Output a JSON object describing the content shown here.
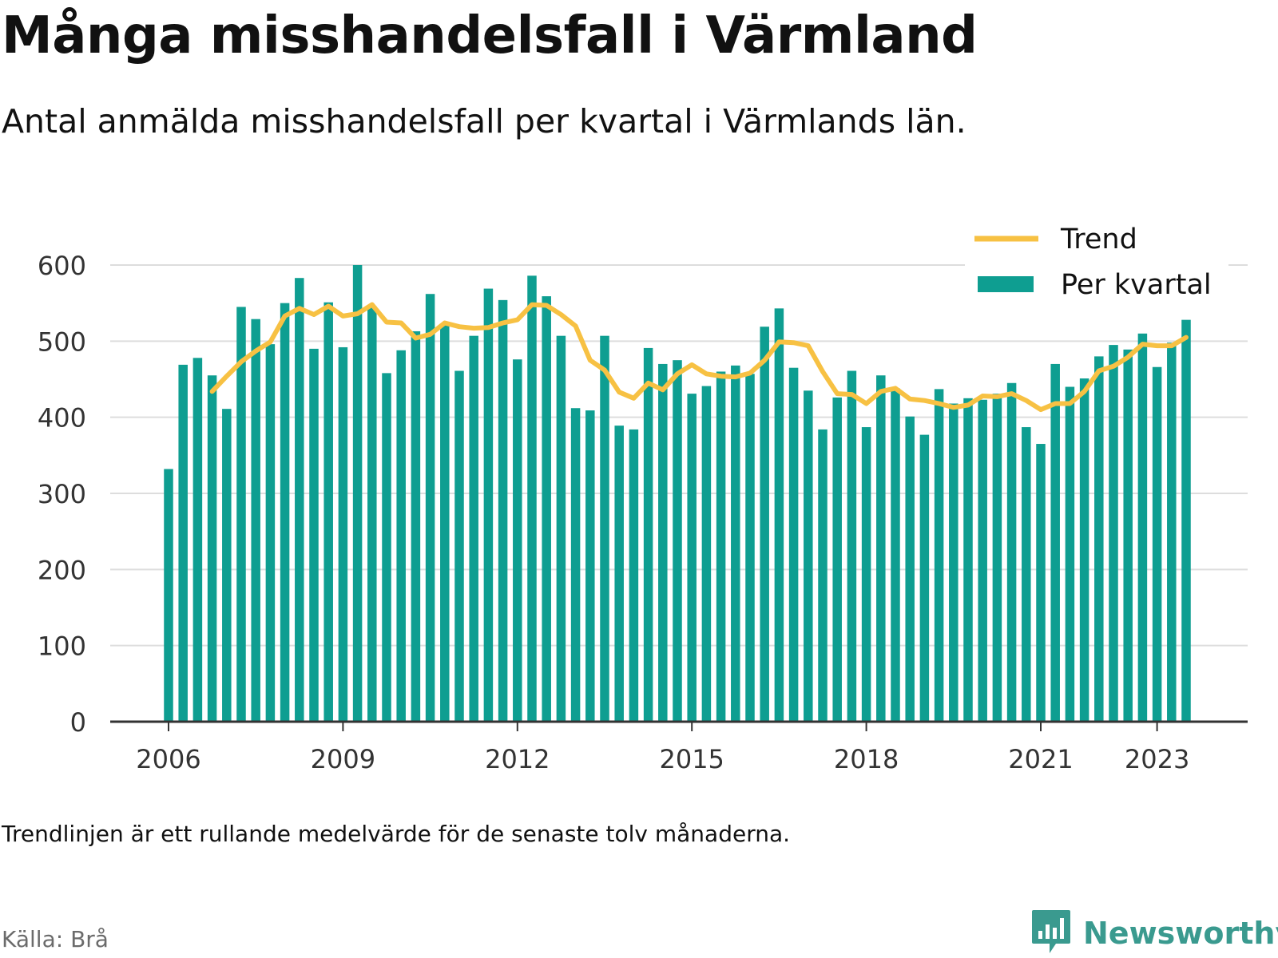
{
  "header": {
    "title": "Många misshandelsfall i Värmland",
    "subtitle": "Antal anmälda misshandelsfall per kvartal i Värmlands län."
  },
  "footer": {
    "note": "Trendlinjen är ett rullande medelvärde för de senaste tolv månaderna.",
    "source": "Källa: Brå",
    "brand": "Newsworthy"
  },
  "colors": {
    "bar": "#0e9e91",
    "trend": "#f7c143",
    "grid": "#dddddd",
    "axis": "#333333",
    "brand": "#3a9a8f"
  },
  "chart_data": {
    "type": "bar",
    "x_ticks": [
      "2006",
      "2009",
      "2012",
      "2015",
      "2018",
      "2021",
      "2023"
    ],
    "x_tick_quarter_index": [
      0,
      12,
      24,
      36,
      48,
      60,
      68
    ],
    "y_ticks": [
      "0",
      "100",
      "200",
      "300",
      "400",
      "500",
      "600"
    ],
    "ylim": [
      0,
      600
    ],
    "grid": true,
    "legend_position": "top-right",
    "start": "2006 Q1",
    "series": [
      {
        "name": "Per kvartal",
        "type": "bar",
        "values": [
          332,
          469,
          478,
          455,
          411,
          545,
          529,
          496,
          550,
          583,
          490,
          551,
          492,
          600,
          546,
          458,
          488,
          513,
          562,
          521,
          461,
          507,
          569,
          554,
          476,
          586,
          559,
          507,
          412,
          409,
          507,
          389,
          384,
          491,
          470,
          475,
          431,
          441,
          460,
          468,
          457,
          519,
          543,
          465,
          435,
          384,
          426,
          461,
          387,
          455,
          438,
          401,
          377,
          437,
          418,
          425,
          423,
          431,
          445,
          387,
          365,
          470,
          440,
          451,
          480,
          495,
          489,
          510,
          466,
          498,
          528
        ]
      },
      {
        "name": "Trend",
        "type": "line",
        "values": [
          null,
          null,
          null,
          434,
          454,
          473,
          487,
          499,
          533,
          543,
          535,
          546,
          533,
          536,
          548,
          525,
          524,
          504,
          509,
          524,
          519,
          517,
          518,
          524,
          528,
          548,
          547,
          535,
          520,
          475,
          462,
          433,
          425,
          445,
          436,
          457,
          469,
          457,
          454,
          453,
          458,
          475,
          499,
          498,
          494,
          460,
          431,
          430,
          418,
          434,
          438,
          424,
          422,
          418,
          413,
          416,
          428,
          427,
          431,
          422,
          410,
          418,
          418,
          434,
          461,
          467,
          479,
          496,
          494,
          494,
          505
        ]
      }
    ]
  }
}
